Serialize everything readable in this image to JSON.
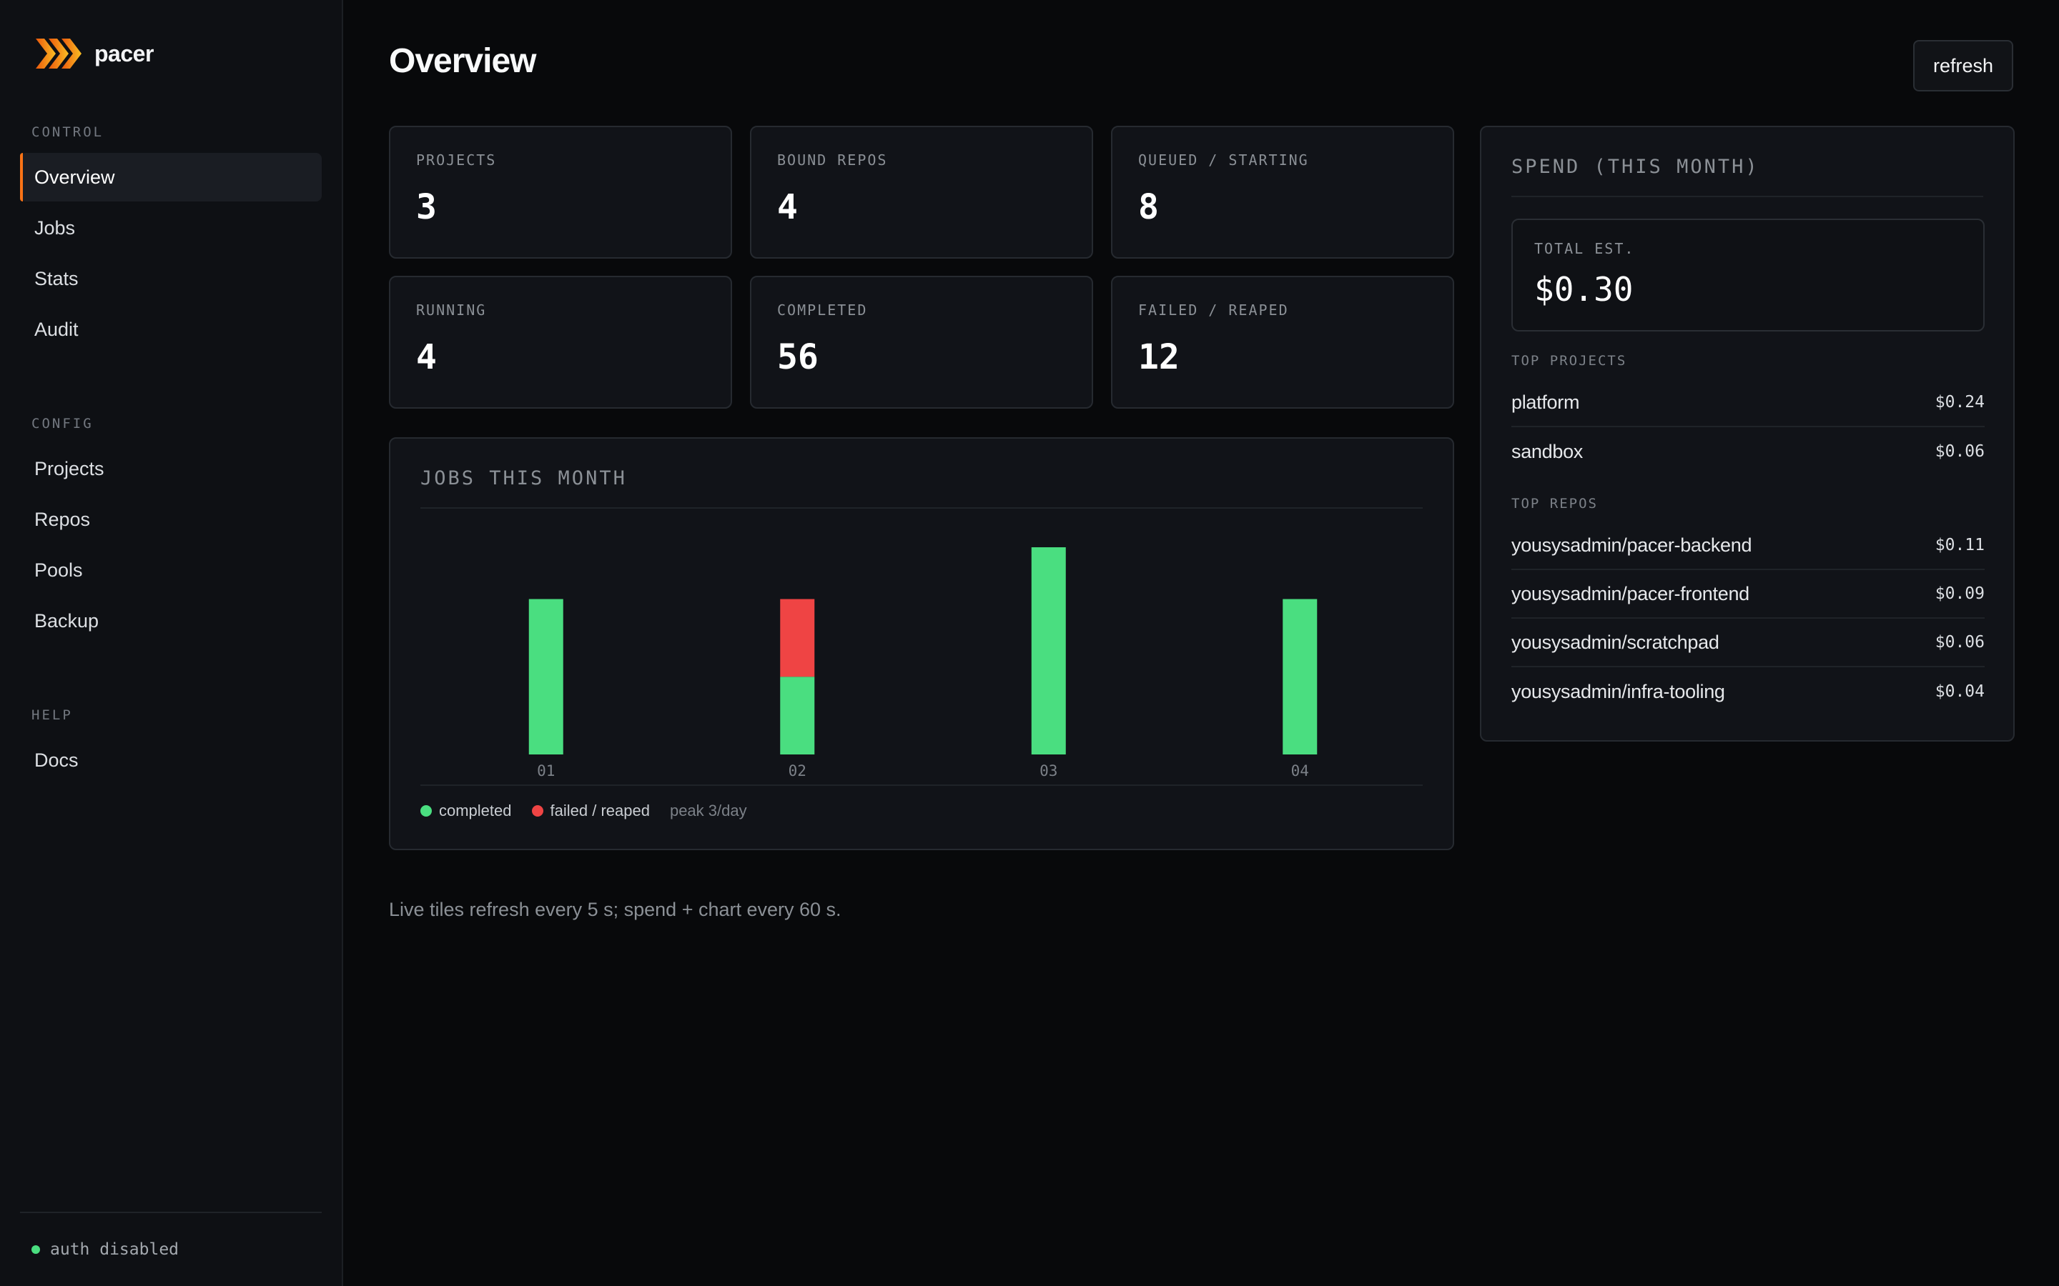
{
  "app": {
    "name": "pacer",
    "logo_icon": "chevrons-right-icon",
    "accent": "#f97316"
  },
  "sidebar": {
    "sections": [
      {
        "label": "CONTROL",
        "items": [
          {
            "label": "Overview",
            "active": true
          },
          {
            "label": "Jobs"
          },
          {
            "label": "Stats"
          },
          {
            "label": "Audit"
          }
        ]
      },
      {
        "label": "CONFIG",
        "items": [
          {
            "label": "Projects"
          },
          {
            "label": "Repos"
          },
          {
            "label": "Pools"
          },
          {
            "label": "Backup"
          }
        ]
      },
      {
        "label": "HELP",
        "items": [
          {
            "label": "Docs"
          }
        ]
      }
    ],
    "footer": {
      "status": "auth disabled",
      "status_color": "#4ade80"
    }
  },
  "header": {
    "title": "Overview",
    "refresh_label": "refresh"
  },
  "tiles": [
    {
      "label": "PROJECTS",
      "value": "3"
    },
    {
      "label": "BOUND REPOS",
      "value": "4"
    },
    {
      "label": "QUEUED / STARTING",
      "value": "8"
    },
    {
      "label": "RUNNING",
      "value": "4"
    },
    {
      "label": "COMPLETED",
      "value": "56"
    },
    {
      "label": "FAILED / REAPED",
      "value": "12"
    }
  ],
  "jobs_panel": {
    "title": "JOBS THIS MONTH",
    "legend": {
      "completed": "completed",
      "failed": "failed / reaped",
      "peak": "peak 3/day"
    },
    "colors": {
      "completed": "#4ade80",
      "failed": "#ef4444"
    }
  },
  "chart_data": {
    "type": "bar",
    "stacked": true,
    "categories": [
      "01",
      "02",
      "03",
      "04"
    ],
    "series": [
      {
        "name": "completed",
        "values": [
          2.4,
          1.2,
          3.2,
          2.4
        ]
      },
      {
        "name": "failed / reaped",
        "values": [
          0,
          1.2,
          0,
          0
        ]
      }
    ],
    "ylim": [
      0,
      3.2
    ],
    "grid": false,
    "legend_position": "bottom-left"
  },
  "footnote": "Live tiles refresh every 5 s; spend + chart every 60 s.",
  "spend": {
    "title": "SPEND (THIS MONTH)",
    "total_label": "TOTAL EST.",
    "total_value": "$0.30",
    "top_projects_label": "TOP PROJECTS",
    "top_projects": [
      {
        "name": "platform",
        "amount": "$0.24"
      },
      {
        "name": "sandbox",
        "amount": "$0.06"
      }
    ],
    "top_repos_label": "TOP REPOS",
    "top_repos": [
      {
        "name": "yousysadmin/pacer-backend",
        "amount": "$0.11"
      },
      {
        "name": "yousysadmin/pacer-frontend",
        "amount": "$0.09"
      },
      {
        "name": "yousysadmin/scratchpad",
        "amount": "$0.06"
      },
      {
        "name": "yousysadmin/infra-tooling",
        "amount": "$0.04"
      }
    ]
  }
}
